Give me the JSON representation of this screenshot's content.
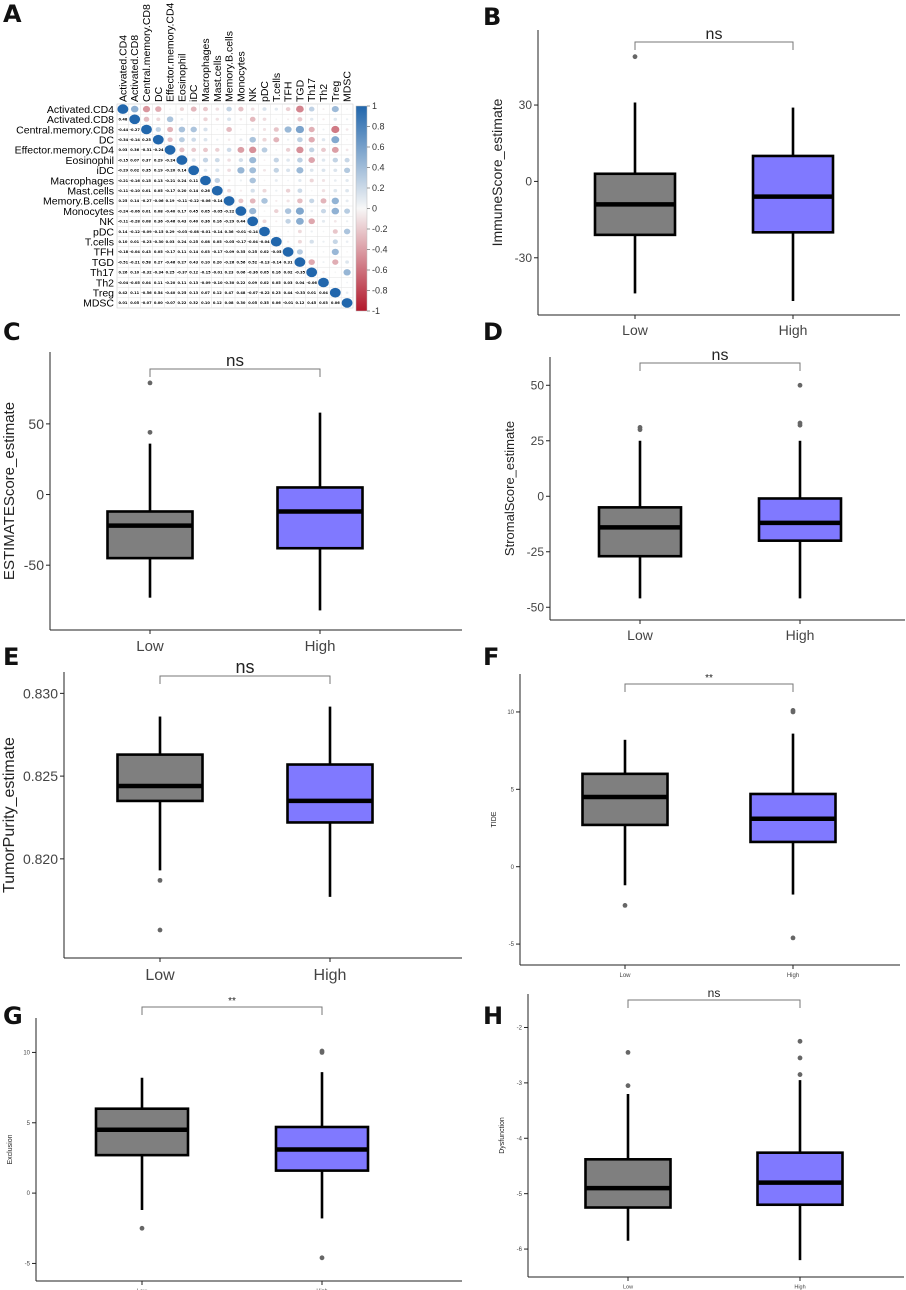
{
  "colors": {
    "low": "#7f7f7f",
    "high": "#8079ff",
    "neg": "#b2182b",
    "pos": "#2166ac",
    "mid": "#f7f7f7"
  },
  "chart_data": [
    {
      "panel": "A",
      "type": "heatmap",
      "labels": [
        "Activated.CD4",
        "Activated.CD8",
        "Central.memory.CD8",
        "DC",
        "Effector.memory.CD4",
        "Eosinophil",
        "iDC",
        "Macrophages",
        "Mast.cells",
        "Memory.B.cells",
        "Monocytes",
        "NK",
        "pDC",
        "T.cells",
        "TFH",
        "TGD",
        "Th17",
        "Th2",
        "Treg",
        "MDSC"
      ],
      "lower_triangle": [
        [],
        [
          0.48
        ],
        [
          -0.44,
          -0.27
        ],
        [
          -0.34,
          -0.14,
          0.25
        ],
        [
          0.03,
          0.36,
          -0.31,
          -0.24
        ],
        [
          -0.15,
          0.07,
          0.37,
          0.29,
          -0.24
        ],
        [
          -0.29,
          0.02,
          0.35,
          0.19,
          -0.2,
          0.14
        ],
        [
          -0.21,
          -0.16,
          0.15,
          0.13,
          -0.21,
          0.24,
          0.11
        ],
        [
          -0.11,
          -0.1,
          0.01,
          0.05,
          -0.17,
          0.2,
          0.14,
          0.26
        ],
        [
          0.25,
          0.14,
          -0.27,
          -0.06,
          0.19,
          -0.11,
          -0.12,
          -0.06,
          -0.14
        ],
        [
          -0.24,
          -0.06,
          0.01,
          0.08,
          -0.4,
          0.17,
          0.45,
          0.05,
          -0.05,
          -0.22
        ],
        [
          -0.11,
          -0.28,
          0.08,
          0.36,
          -0.46,
          0.43,
          0.4,
          0.36,
          0.16,
          -0.29,
          0.44
        ],
        [
          0.14,
          -0.12,
          -0.09,
          -0.15,
          0.29,
          -0.03,
          -0.08,
          -0.01,
          -0.14,
          0.36,
          -0.01,
          -0.14
        ],
        [
          0.1,
          0.01,
          -0.23,
          -0.3,
          0.03,
          0.24,
          0.25,
          0.08,
          0.05,
          -0.05,
          -0.17,
          -0.04,
          -0.04
        ],
        [
          -0.18,
          -0.04,
          0.43,
          0.05,
          -0.17,
          0.11,
          0.14,
          0.03,
          -0.17,
          -0.09,
          0.35,
          0.25,
          0.02,
          -0.05
        ],
        [
          -0.51,
          -0.21,
          0.58,
          0.27,
          -0.46,
          0.27,
          0.43,
          0.1,
          0.2,
          -0.26,
          0.56,
          0.52,
          -0.13,
          -0.14,
          0.31
        ],
        [
          0.26,
          0.1,
          -0.32,
          -0.34,
          0.25,
          -0.37,
          0.12,
          -0.15,
          -0.01,
          0.23,
          0.06,
          -0.36,
          0.05,
          0.16,
          0.02,
          -0.35
        ],
        [
          -0.04,
          -0.05,
          0.04,
          0.11,
          -0.2,
          0.11,
          0.13,
          -0.09,
          -0.1,
          -0.3,
          0.22,
          0.09,
          0.02,
          0.05,
          0.03,
          0.04,
          -0.06
        ],
        [
          0.42,
          0.11,
          -0.56,
          0.54,
          -0.4,
          0.25,
          0.13,
          0.07,
          0.12,
          0.47,
          0.48,
          -0.07,
          -0.22,
          0.23,
          0.44,
          -0.33,
          0.01,
          0.04
        ],
        [
          0.01,
          0.05,
          -0.07,
          -0.0,
          -0.07,
          0.22,
          0.32,
          0.1,
          0.12,
          0.08,
          0.3,
          0.05,
          0.35,
          0.06,
          -0.01,
          0.12,
          0.45,
          0.03,
          0.06
        ]
      ],
      "colorbar": {
        "min": -1,
        "max": 1,
        "ticks": [
          "1",
          "0.8",
          "0.6",
          "0.4",
          "0.2",
          "0",
          "-0.2",
          "-0.4",
          "-0.6",
          "-0.8",
          "-1"
        ]
      }
    },
    {
      "panel": "B",
      "type": "boxplot",
      "ylabel": "ImmuneScore_estimate",
      "categories": [
        "Low",
        "High"
      ],
      "ylim": [
        -48,
        55
      ],
      "yticks": [
        {
          "v": 30,
          "t": "30"
        },
        {
          "v": 0,
          "t": "0"
        },
        {
          "v": -30,
          "t": "-30"
        }
      ],
      "boxes": [
        {
          "name": "Low",
          "whisker_low": -44,
          "q1": -21,
          "median": -9,
          "q3": 3,
          "whisker_high": 31,
          "outliers": [
            49
          ]
        },
        {
          "name": "High",
          "whisker_low": -47,
          "q1": -20,
          "median": -6,
          "q3": 10,
          "whisker_high": 29,
          "outliers": []
        }
      ],
      "significance": "ns"
    },
    {
      "panel": "C",
      "type": "boxplot",
      "ylabel": "ESTIMATEScore_estimate",
      "categories": [
        "Low",
        "High"
      ],
      "ylim": [
        -88,
        93
      ],
      "yticks": [
        {
          "v": 50,
          "t": "50"
        },
        {
          "v": 0,
          "t": "0"
        },
        {
          "v": -50,
          "t": "-50"
        }
      ],
      "boxes": [
        {
          "name": "Low",
          "whisker_low": -73,
          "q1": -45,
          "median": -22,
          "q3": -12,
          "whisker_high": 36,
          "outliers": [
            44,
            79
          ]
        },
        {
          "name": "High",
          "whisker_low": -82,
          "q1": -38,
          "median": -12,
          "q3": 5,
          "whisker_high": 58,
          "outliers": []
        }
      ],
      "significance": "ns"
    },
    {
      "panel": "D",
      "type": "boxplot",
      "ylabel": "StromalScore_estimate",
      "categories": [
        "Low",
        "High"
      ],
      "ylim": [
        -51,
        58
      ],
      "yticks": [
        {
          "v": 50,
          "t": "50"
        },
        {
          "v": 25,
          "t": "25"
        },
        {
          "v": 0,
          "t": "0"
        },
        {
          "v": -25,
          "t": "-25"
        },
        {
          "v": -50,
          "t": "-50"
        }
      ],
      "boxes": [
        {
          "name": "Low",
          "whisker_low": -46,
          "q1": -27,
          "median": -14,
          "q3": -5,
          "whisker_high": 25,
          "outliers": [
            30,
            31
          ]
        },
        {
          "name": "High",
          "whisker_low": -46,
          "q1": -20,
          "median": -12,
          "q3": -1,
          "whisker_high": 25,
          "outliers": [
            32,
            33,
            50
          ]
        }
      ],
      "significance": "ns"
    },
    {
      "panel": "E",
      "type": "boxplot",
      "ylabel": "TumorPurity_estimate",
      "categories": [
        "Low",
        "High"
      ],
      "ylim": [
        0.8147,
        0.8306
      ],
      "yticks": [
        {
          "v": 0.83,
          "t": "0.830"
        },
        {
          "v": 0.825,
          "t": "0.825"
        },
        {
          "v": 0.82,
          "t": "0.820"
        }
      ],
      "boxes": [
        {
          "name": "Low",
          "whisker_low": 0.8193,
          "q1": 0.8235,
          "median": 0.8244,
          "q3": 0.8263,
          "whisker_high": 0.8286,
          "outliers": [
            0.8187,
            0.8157
          ]
        },
        {
          "name": "High",
          "whisker_low": 0.8177,
          "q1": 0.8222,
          "median": 0.8235,
          "q3": 0.8257,
          "whisker_high": 0.8292,
          "outliers": []
        }
      ],
      "significance": "ns"
    },
    {
      "panel": "F",
      "type": "boxplot",
      "ylabel": "TIDE",
      "categories": [
        "Low",
        "High"
      ],
      "ylim": [
        -5.6,
        11.7
      ],
      "yticks": [
        {
          "v": 10,
          "t": "10"
        },
        {
          "v": 5,
          "t": "5"
        },
        {
          "v": 0,
          "t": "0"
        },
        {
          "v": -5,
          "t": "-5"
        }
      ],
      "boxes": [
        {
          "name": "Low",
          "whisker_low": -1.2,
          "q1": 2.7,
          "median": 4.5,
          "q3": 6,
          "whisker_high": 8.2,
          "outliers": [
            -2.5
          ]
        },
        {
          "name": "High",
          "whisker_low": -1.8,
          "q1": 1.6,
          "median": 3.1,
          "q3": 4.7,
          "whisker_high": 8.6,
          "outliers": [
            10,
            10.1,
            -4.6
          ]
        }
      ],
      "significance": "**"
    },
    {
      "panel": "G",
      "type": "boxplot",
      "ylabel": "Exclusion",
      "categories": [
        "Low",
        "High"
      ],
      "ylim": [
        -5.5,
        11.7
      ],
      "yticks": [
        {
          "v": 10,
          "t": "10"
        },
        {
          "v": 5,
          "t": "5"
        },
        {
          "v": 0,
          "t": "0"
        },
        {
          "v": -5,
          "t": "-5"
        }
      ],
      "boxes": [
        {
          "name": "Low",
          "whisker_low": -1.2,
          "q1": 2.7,
          "median": 4.5,
          "q3": 6,
          "whisker_high": 8.2,
          "outliers": [
            -2.5
          ]
        },
        {
          "name": "High",
          "whisker_low": -1.8,
          "q1": 1.6,
          "median": 3.1,
          "q3": 4.7,
          "whisker_high": 8.6,
          "outliers": [
            10,
            10.1,
            -4.6
          ]
        }
      ],
      "significance": "**"
    },
    {
      "panel": "H",
      "type": "boxplot",
      "ylabel": "Dysfunction",
      "categories": [
        "Low",
        "High"
      ],
      "ylim": [
        -6.3,
        -1.6
      ],
      "yticks": [
        {
          "v": -2,
          "t": "-2"
        },
        {
          "v": -3,
          "t": "-3"
        },
        {
          "v": -4,
          "t": "-4"
        },
        {
          "v": -5,
          "t": "-5"
        },
        {
          "v": -6,
          "t": "-6"
        }
      ],
      "boxes": [
        {
          "name": "Low",
          "whisker_low": -5.85,
          "q1": -5.25,
          "median": -4.9,
          "q3": -4.38,
          "whisker_high": -3.2,
          "outliers": [
            -3.05,
            -2.45
          ]
        },
        {
          "name": "High",
          "whisker_low": -6.2,
          "q1": -5.2,
          "median": -4.8,
          "q3": -4.26,
          "whisker_high": -2.95,
          "outliers": [
            -2.85,
            -2.55,
            -2.25
          ]
        }
      ],
      "significance": "ns"
    }
  ]
}
